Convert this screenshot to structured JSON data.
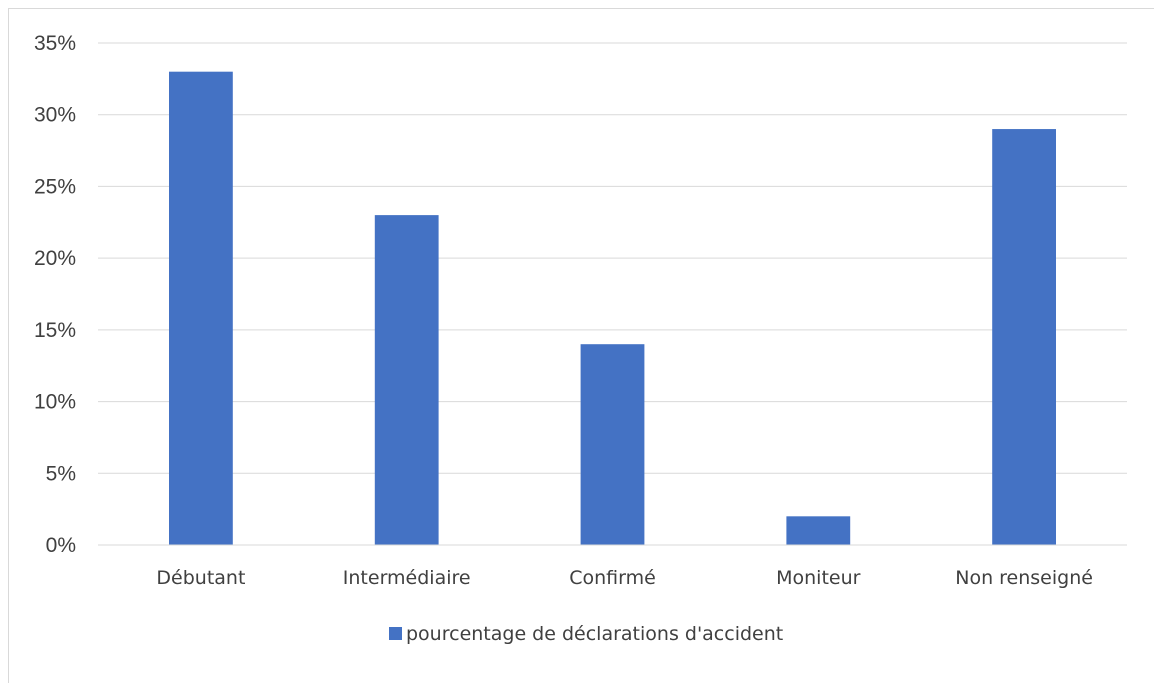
{
  "chart_data": {
    "type": "bar",
    "title": "",
    "xlabel": "",
    "ylabel": "",
    "categories": [
      "Débutant",
      "Intermédiaire",
      "Confirmé",
      "Moniteur",
      "Non renseigné"
    ],
    "series": [
      {
        "name": "pourcentage de déclarations d'accident",
        "values": [
          33,
          23,
          14,
          2,
          29
        ],
        "color": "#4472c4"
      }
    ],
    "ylim": [
      0,
      35
    ],
    "yticks": [
      0,
      5,
      10,
      15,
      20,
      25,
      30,
      35
    ],
    "ytick_labels": [
      "0%",
      "5%",
      "10%",
      "15%",
      "20%",
      "25%",
      "30%",
      "35%"
    ],
    "grid": true,
    "legend_position": "bottom"
  }
}
